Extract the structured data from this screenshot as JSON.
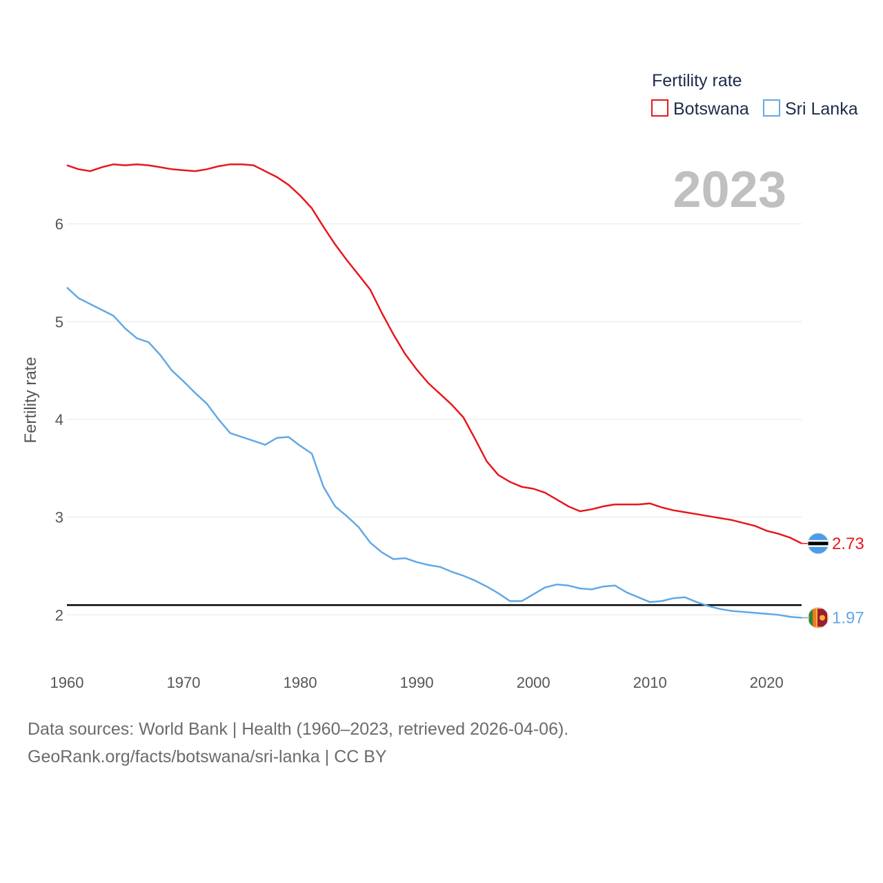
{
  "chart_data": {
    "type": "line",
    "title": "",
    "year_display": "2023",
    "ylabel": "Fertility rate",
    "xlabel": "",
    "xlim": [
      1960,
      2023
    ],
    "ylim": [
      1.55,
      6.95
    ],
    "x_ticks": [
      1960,
      1970,
      1980,
      1990,
      2000,
      2010,
      2020
    ],
    "y_ticks": [
      2,
      3,
      4,
      5,
      6
    ],
    "reference_line": 2.1,
    "legend": {
      "title": "Fertility rate",
      "placement": "top-right"
    },
    "x": [
      1960,
      1961,
      1962,
      1963,
      1964,
      1965,
      1966,
      1967,
      1968,
      1969,
      1970,
      1971,
      1972,
      1973,
      1974,
      1975,
      1976,
      1977,
      1978,
      1979,
      1980,
      1981,
      1982,
      1983,
      1984,
      1985,
      1986,
      1987,
      1988,
      1989,
      1990,
      1991,
      1992,
      1993,
      1994,
      1995,
      1996,
      1997,
      1998,
      1999,
      2000,
      2001,
      2002,
      2003,
      2004,
      2005,
      2006,
      2007,
      2008,
      2009,
      2010,
      2011,
      2012,
      2013,
      2014,
      2015,
      2016,
      2017,
      2018,
      2019,
      2020,
      2021,
      2022,
      2023
    ],
    "series": [
      {
        "name": "Botswana",
        "color": "#e8161b",
        "end_label": "2.73",
        "flag": "botswana",
        "values": [
          6.6,
          6.56,
          6.54,
          6.58,
          6.61,
          6.6,
          6.61,
          6.6,
          6.58,
          6.56,
          6.55,
          6.54,
          6.56,
          6.59,
          6.61,
          6.61,
          6.6,
          6.54,
          6.48,
          6.4,
          6.29,
          6.16,
          5.97,
          5.79,
          5.63,
          5.48,
          5.33,
          5.09,
          4.87,
          4.67,
          4.51,
          4.37,
          4.26,
          4.15,
          4.02,
          3.8,
          3.57,
          3.43,
          3.36,
          3.31,
          3.29,
          3.25,
          3.18,
          3.11,
          3.06,
          3.08,
          3.11,
          3.13,
          3.13,
          3.13,
          3.14,
          3.1,
          3.07,
          3.05,
          3.03,
          3.01,
          2.99,
          2.97,
          2.94,
          2.91,
          2.86,
          2.83,
          2.79,
          2.73
        ]
      },
      {
        "name": "Sri Lanka",
        "color": "#62a8e5",
        "end_label": "1.97",
        "flag": "sri-lanka",
        "values": [
          5.35,
          5.24,
          5.18,
          5.12,
          5.06,
          4.93,
          4.83,
          4.79,
          4.66,
          4.5,
          4.39,
          4.27,
          4.16,
          4.0,
          3.86,
          3.82,
          3.78,
          3.74,
          3.81,
          3.82,
          3.73,
          3.65,
          3.31,
          3.11,
          3.01,
          2.9,
          2.74,
          2.64,
          2.57,
          2.58,
          2.54,
          2.51,
          2.49,
          2.44,
          2.4,
          2.35,
          2.29,
          2.22,
          2.14,
          2.14,
          2.21,
          2.28,
          2.31,
          2.3,
          2.27,
          2.26,
          2.29,
          2.3,
          2.23,
          2.18,
          2.13,
          2.14,
          2.17,
          2.18,
          2.13,
          2.09,
          2.06,
          2.04,
          2.03,
          2.02,
          2.01,
          2.0,
          1.98,
          1.97
        ]
      }
    ]
  },
  "footer": {
    "line1": "Data sources: World Bank | Health (1960–2023, retrieved 2026-04-06).",
    "line2": "GeoRank.org/facts/botswana/sri-lanka | CC BY"
  }
}
